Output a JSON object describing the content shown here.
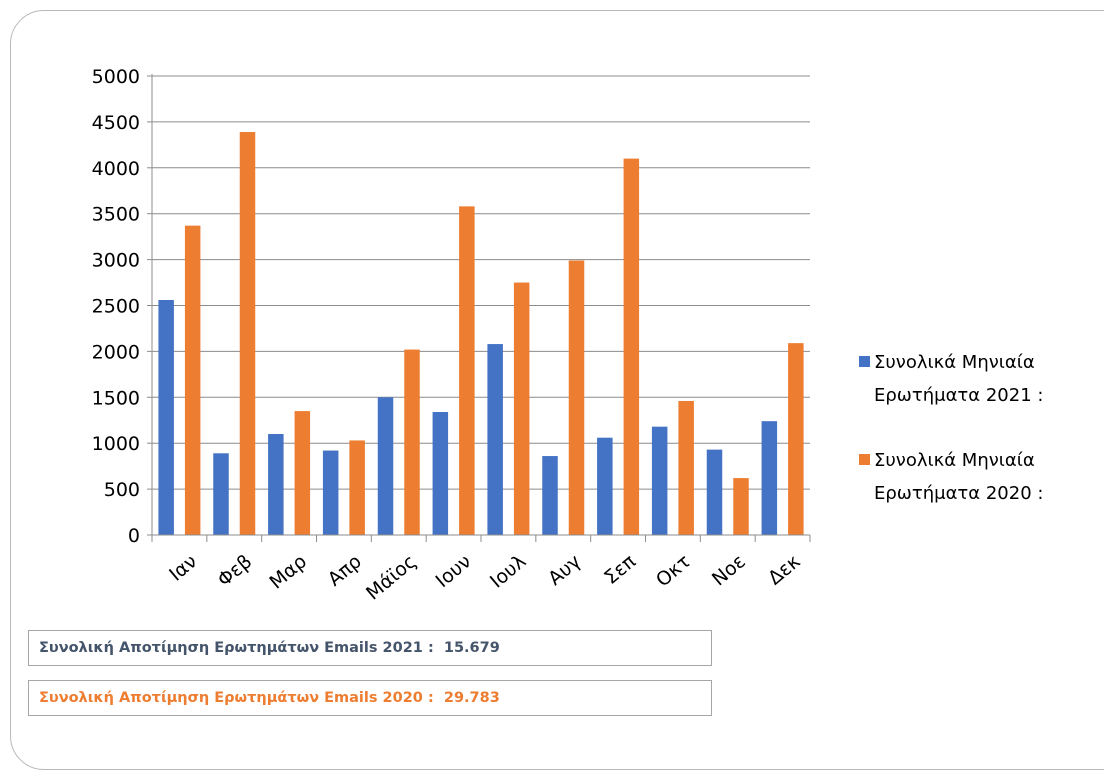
{
  "chart_data": {
    "type": "bar",
    "categories": [
      "Ιαν",
      "Φεβ",
      "Μαρ",
      "Απρ",
      "Μάϊος",
      "Ιουν",
      "Ιουλ",
      "Αυγ",
      "Σεπ",
      "Οκτ",
      "Νοε",
      "Δεκ"
    ],
    "series": [
      {
        "name": "Συνολικά Μηνιαία Ερωτήματα 2021 :",
        "name_lines": [
          "Συνολικά Μηνιαία",
          "Ερωτήματα 2021 :"
        ],
        "color": "#4472c4",
        "values": [
          2560,
          890,
          1100,
          920,
          1500,
          1340,
          2080,
          860,
          1060,
          1180,
          930,
          1240
        ]
      },
      {
        "name": "Συνολικά Μηνιαία Ερωτήματα 2020 :",
        "name_lines": [
          "Συνολικά Μηνιαία",
          "Ερωτήματα 2020 :"
        ],
        "color": "#ed7d31",
        "values": [
          3370,
          4390,
          1350,
          1030,
          2020,
          3580,
          2750,
          2990,
          4100,
          1460,
          620,
          2090
        ]
      }
    ],
    "ylim": [
      0,
      5000
    ],
    "yticks": [
      0,
      500,
      1000,
      1500,
      2000,
      2500,
      3000,
      3500,
      4000,
      4500,
      5000
    ],
    "grid": true,
    "legend": "right",
    "title": "",
    "xlabel": "",
    "ylabel": ""
  },
  "summary": {
    "line_2021": {
      "label": "Συνολική Αποτίμηση Ερωτημάτων Emails 2021 :",
      "value": "15.679",
      "color": "#44546a"
    },
    "line_2020": {
      "label": "Συνολική Αποτίμηση Ερωτημάτων Emails 2020 :",
      "value": "29.783",
      "color": "#ed7d31"
    }
  }
}
